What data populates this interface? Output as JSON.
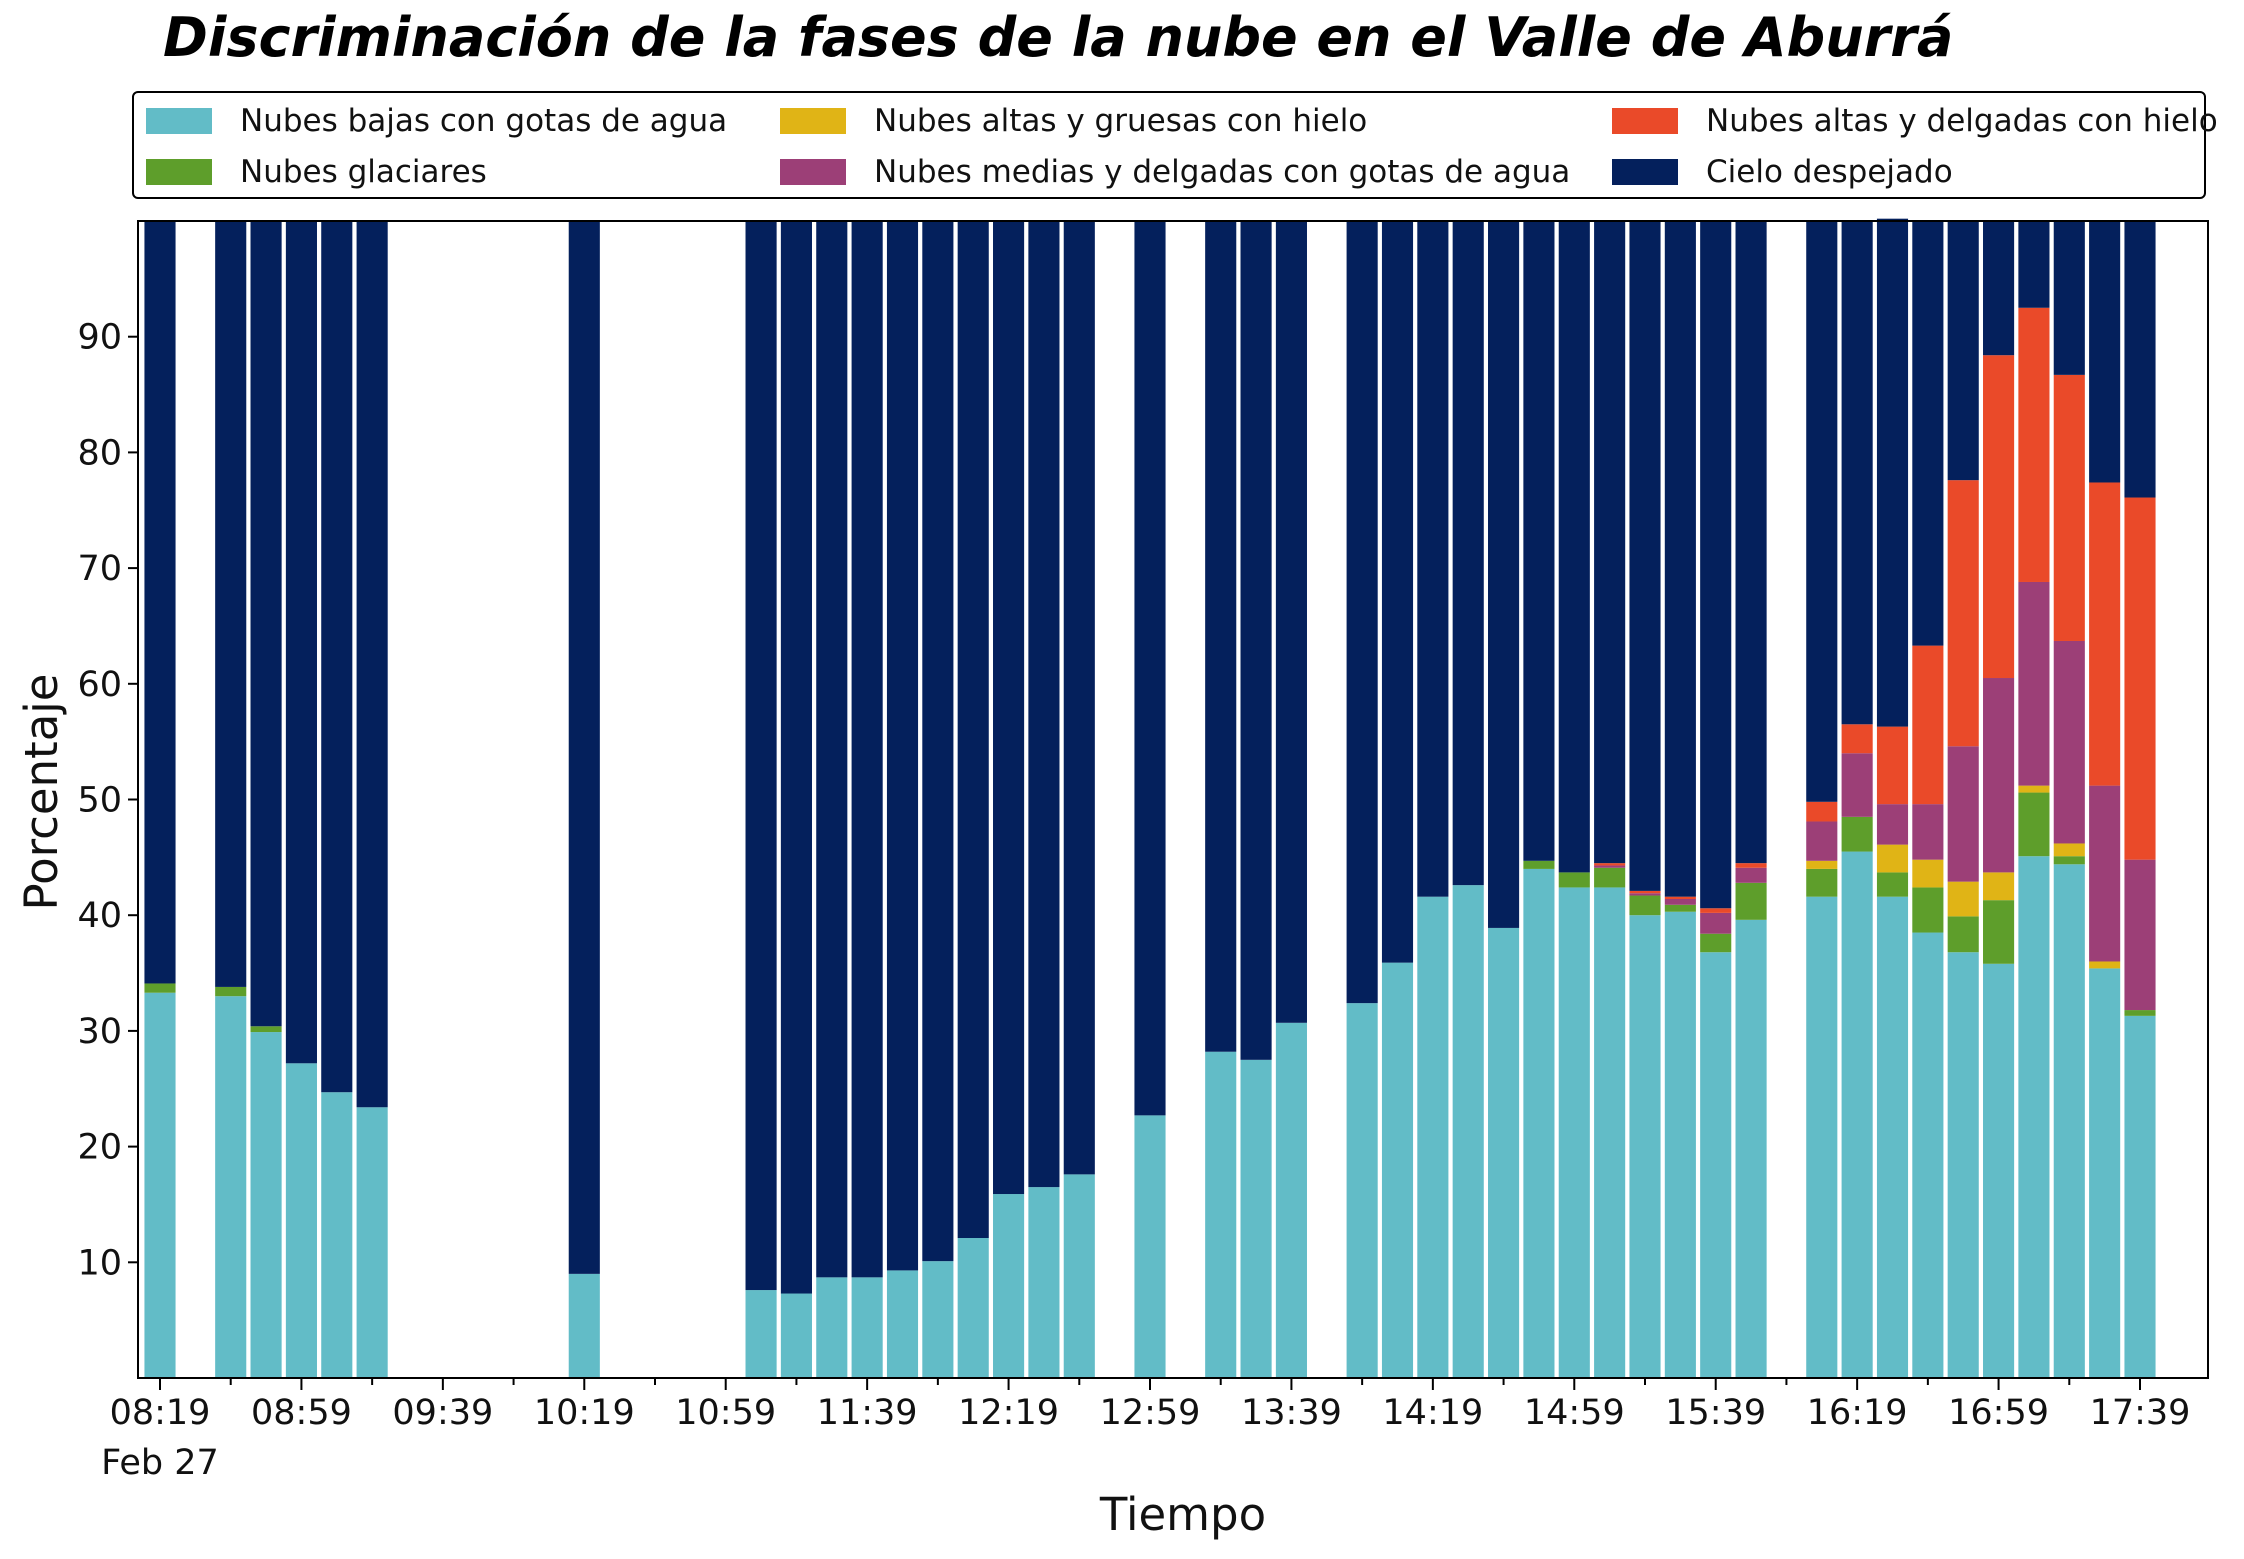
{
  "chart_data": {
    "type": "bar",
    "stacked": true,
    "title": "Discriminación de la fases de la nube en el Valle de Aburrá",
    "xlabel": "Tiempo",
    "ylabel": "Porcentaje",
    "ylim": [
      0,
      100
    ],
    "y_ticks": [
      10,
      20,
      30,
      40,
      50,
      60,
      70,
      80,
      90
    ],
    "x_tick_labels": [
      "08:19",
      "08:59",
      "09:39",
      "10:19",
      "10:59",
      "11:39",
      "12:19",
      "12:59",
      "13:39",
      "14:19",
      "14:59",
      "15:39",
      "16:19",
      "16:59",
      "17:39"
    ],
    "x_tick_sublabel": "Feb 27",
    "x_tick_interval_minutes": 40,
    "bar_interval_minutes": 10,
    "first_bar_time": "08:19",
    "last_bar_time": "17:39",
    "legend_position": "top",
    "grid": false,
    "colors": {
      "Nubes bajas con gotas de agua": "#62BCC7",
      "Nubes glaciares": "#5E9E2B",
      "Nubes altas y gruesas con hielo": "#E0B416",
      "Nubes medias y delgadas con gotas de agua": "#9C3F77",
      "Nubes altas y delgadas con hielo": "#EA4A29",
      "Cielo despejado": "#04205C"
    },
    "times": [
      "08:19",
      "08:29",
      "08:39",
      "08:49",
      "08:59",
      "09:09",
      "09:19",
      "09:29",
      "09:39",
      "09:49",
      "09:59",
      "10:09",
      "10:19",
      "10:29",
      "10:39",
      "10:49",
      "10:59",
      "11:09",
      "11:19",
      "11:29",
      "11:39",
      "11:49",
      "11:59",
      "12:09",
      "12:19",
      "12:29",
      "12:39",
      "12:49",
      "12:59",
      "13:09",
      "13:19",
      "13:29",
      "13:39",
      "13:49",
      "13:59",
      "14:09",
      "14:19",
      "14:29",
      "14:39",
      "14:49",
      "14:59",
      "15:09",
      "15:19",
      "15:29",
      "15:39",
      "15:49",
      "15:59",
      "16:09",
      "16:19",
      "16:29",
      "16:39",
      "16:49",
      "16:59",
      "17:09",
      "17:19",
      "17:29",
      "17:39"
    ],
    "series": [
      {
        "name": "Nubes bajas con gotas de agua",
        "values": [
          33.3,
          null,
          33.0,
          29.9,
          27.2,
          24.7,
          23.4,
          null,
          null,
          null,
          null,
          null,
          9.0,
          null,
          null,
          null,
          null,
          7.6,
          7.3,
          8.7,
          8.7,
          9.3,
          10.1,
          12.1,
          15.9,
          16.5,
          17.6,
          null,
          22.7,
          null,
          28.2,
          27.5,
          30.7,
          null,
          32.4,
          35.9,
          41.6,
          42.6,
          38.9,
          44.0,
          42.4,
          42.4,
          40.0,
          40.3,
          36.8,
          39.6,
          null,
          41.6,
          45.5,
          41.6,
          38.5,
          36.8,
          35.8,
          45.1,
          44.4,
          35.4,
          31.3
        ]
      },
      {
        "name": "Nubes glaciares",
        "values": [
          0.8,
          null,
          0.8,
          0.5,
          0.0,
          0.0,
          0.0,
          null,
          null,
          null,
          null,
          null,
          0.0,
          null,
          null,
          null,
          null,
          0.0,
          0.0,
          0.0,
          0.0,
          0.0,
          0.0,
          0.0,
          0.0,
          0.0,
          0.0,
          null,
          0.0,
          null,
          0.0,
          0.0,
          0.0,
          null,
          0.0,
          0.0,
          0.0,
          0.0,
          0.0,
          0.7,
          1.3,
          1.7,
          1.7,
          0.6,
          1.6,
          3.2,
          null,
          2.4,
          3.0,
          2.1,
          3.9,
          3.1,
          5.5,
          5.5,
          0.7,
          0.0,
          0.5
        ]
      },
      {
        "name": "Nubes altas y gruesas con hielo",
        "values": [
          0,
          null,
          0,
          0,
          0,
          0,
          0,
          null,
          null,
          null,
          null,
          null,
          0,
          null,
          null,
          null,
          null,
          0,
          0,
          0,
          0,
          0,
          0,
          0,
          0,
          0,
          0,
          null,
          0,
          null,
          0,
          0,
          0,
          null,
          0,
          0,
          0,
          0,
          0,
          0,
          0,
          0,
          0,
          0,
          0,
          0,
          null,
          0.7,
          0,
          2.4,
          2.4,
          3.0,
          2.4,
          0.6,
          1.1,
          0.6,
          0
        ]
      },
      {
        "name": "Nubes medias y delgadas con gotas de agua",
        "values": [
          0,
          null,
          0,
          0,
          0,
          0,
          0,
          null,
          null,
          null,
          null,
          null,
          0,
          null,
          null,
          null,
          null,
          0,
          0,
          0,
          0,
          0,
          0,
          0,
          0,
          0,
          0,
          null,
          0,
          null,
          0,
          0,
          0,
          null,
          0,
          0,
          0,
          0,
          0,
          0,
          0,
          0.2,
          0.2,
          0.5,
          1.8,
          1.3,
          null,
          3.4,
          5.5,
          3.5,
          4.8,
          11.7,
          16.8,
          17.6,
          17.5,
          15.2,
          13.0
        ]
      },
      {
        "name": "Nubes altas y delgadas con hielo",
        "values": [
          0,
          null,
          0,
          0,
          0,
          0,
          0,
          null,
          null,
          null,
          null,
          null,
          0,
          null,
          null,
          null,
          null,
          0,
          0,
          0,
          0,
          0,
          0,
          0,
          0,
          0,
          0,
          null,
          0,
          null,
          0,
          0,
          0,
          null,
          0,
          0,
          0,
          0,
          0,
          0,
          0,
          0.2,
          0.2,
          0.2,
          0.4,
          0.4,
          null,
          1.7,
          2.5,
          6.7,
          13.7,
          23.0,
          27.9,
          23.7,
          23.0,
          26.2,
          31.3
        ]
      },
      {
        "name": "Cielo despejado",
        "values": [
          65.9,
          null,
          66.2,
          69.6,
          72.8,
          75.3,
          76.6,
          null,
          null,
          null,
          null,
          null,
          91.0,
          null,
          null,
          null,
          null,
          92.4,
          92.7,
          91.3,
          91.3,
          90.7,
          89.9,
          87.9,
          84.1,
          83.5,
          82.4,
          null,
          77.3,
          null,
          71.8,
          72.5,
          69.3,
          null,
          67.6,
          64.1,
          58.4,
          57.4,
          61.1,
          55.3,
          56.3,
          55.5,
          57.9,
          58.4,
          59.4,
          55.5,
          null,
          50.2,
          43.5,
          43.9,
          36.7,
          22.4,
          11.6,
          7.5,
          13.3,
          22.6,
          23.9
        ]
      }
    ]
  }
}
